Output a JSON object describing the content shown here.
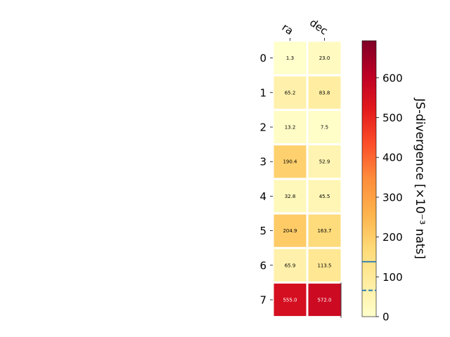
{
  "chart_data": {
    "type": "heatmap",
    "columns": [
      "ra",
      "dec"
    ],
    "rows": [
      "0",
      "1",
      "2",
      "3",
      "4",
      "5",
      "6",
      "7"
    ],
    "values": [
      [
        1.3,
        23.0
      ],
      [
        65.2,
        83.8
      ],
      [
        13.2,
        7.5
      ],
      [
        190.4,
        52.9
      ],
      [
        32.8,
        45.5
      ],
      [
        204.9,
        163.7
      ],
      [
        65.9,
        113.5
      ],
      [
        555.0,
        572.0
      ]
    ],
    "cell_labels": [
      [
        "1.3",
        "23.0"
      ],
      [
        "65.2",
        "83.8"
      ],
      [
        "13.2",
        "7.5"
      ],
      [
        "190.4",
        "52.9"
      ],
      [
        "32.8",
        "45.5"
      ],
      [
        "204.9",
        "163.7"
      ],
      [
        "65.9",
        "113.5"
      ],
      [
        "555.0",
        "572.0"
      ]
    ],
    "colormap": "YlOrRd",
    "colorbar": {
      "label": "JS-divergence [×10⁻³ nats]",
      "range": [
        0,
        693.1
      ],
      "ticks": [
        0,
        100,
        200,
        300,
        400,
        500,
        600
      ],
      "tick_labels": [
        "0",
        "100",
        "200",
        "300",
        "400",
        "500",
        "600"
      ],
      "reference_lines": [
        {
          "value": 138,
          "style": "solid",
          "color": "#1f77b4"
        },
        {
          "value": 66,
          "style": "dashed",
          "color": "#1f77b4"
        }
      ]
    },
    "grid": false
  }
}
